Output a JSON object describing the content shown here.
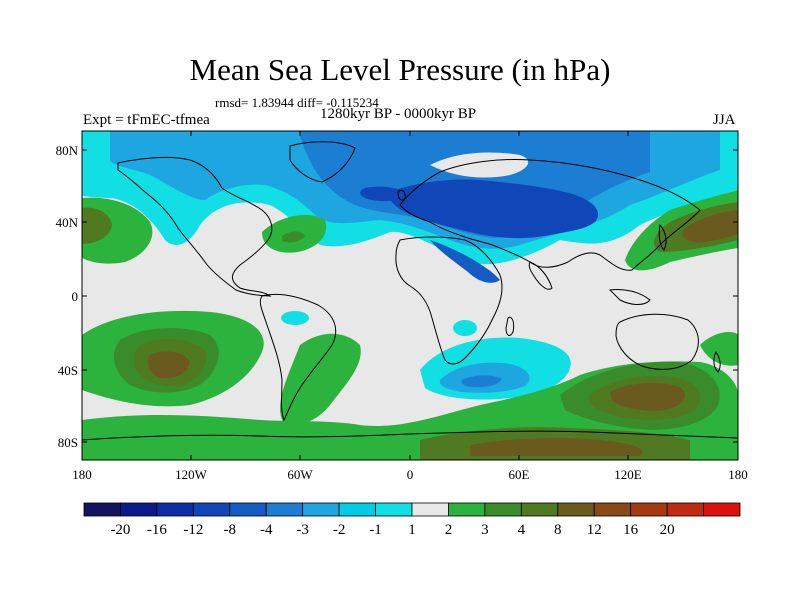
{
  "map": {
    "title": "Mean Sea Level Pressure (in hPa)",
    "stats": "rmsd= 1.83944  diff= -0.115234",
    "period": "1280kyr BP - 0000kyr BP",
    "experiment": "Expt = tFmEC-tfmea",
    "season": "JJA",
    "lat_labels": [
      "80N",
      "40N",
      "0",
      "40S",
      "80S"
    ],
    "lon_labels": [
      "180",
      "120W",
      "60W",
      "0",
      "60E",
      "120E",
      "180"
    ]
  },
  "colorbar": {
    "labels": [
      "-20",
      "-16",
      "-12",
      "-8",
      "-4",
      "-3",
      "-2",
      "-1",
      "1",
      "2",
      "3",
      "4",
      "8",
      "12",
      "16",
      "20"
    ],
    "colors": [
      "#14135e",
      "#0a1a8a",
      "#0c2ca8",
      "#1046b8",
      "#145bc4",
      "#1c7ed2",
      "#1ea6e0",
      "#00cce6",
      "#12dfe3",
      "#e8e8e8",
      "#2cb33d",
      "#3a8c2a",
      "#4f7a22",
      "#6b5a1e",
      "#8a4a16",
      "#a63a10",
      "#c02a10",
      "#dd1010"
    ]
  }
}
